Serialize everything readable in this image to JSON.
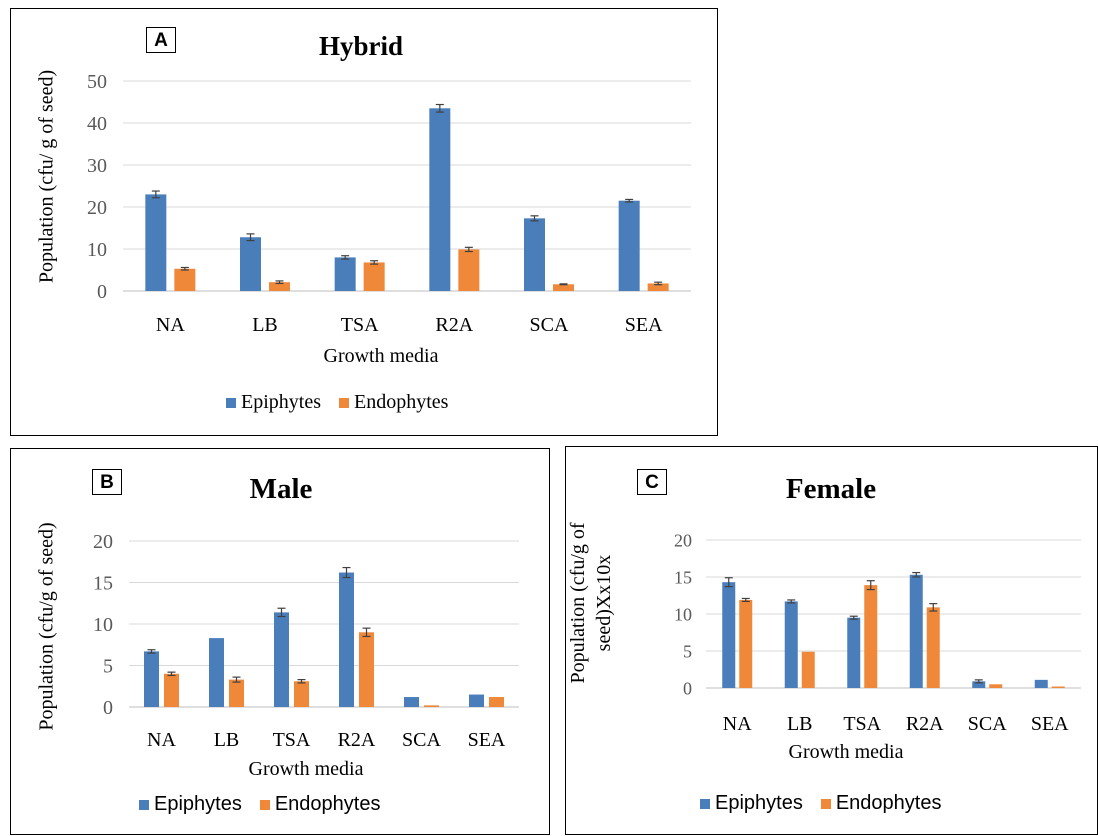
{
  "colors": {
    "epiphytes": "#4a7ebb",
    "endophytes": "#f0883a",
    "grid": "#d9d9d9",
    "error": "#404040"
  },
  "chart_data": [
    {
      "type": "bar",
      "panel_label": "A",
      "title": "Hybrid",
      "xlabel": "Growth media",
      "ylabel": "Population (cfu/ g of seed)",
      "categories": [
        "NA",
        "LB",
        "TSA",
        "R2A",
        "SCA",
        "SEA"
      ],
      "ylim": [
        0,
        50
      ],
      "yticks": [
        0,
        10,
        20,
        30,
        40,
        50
      ],
      "grid": true,
      "legend_position": "bottom",
      "series": [
        {
          "name": "Epiphytes",
          "values": [
            23,
            12.8,
            8,
            43.5,
            17.3,
            21.5
          ],
          "errors": [
            0.8,
            0.8,
            0.4,
            0.9,
            0.6,
            0.3
          ]
        },
        {
          "name": "Endophytes",
          "values": [
            5.3,
            2.1,
            6.8,
            9.9,
            1.6,
            1.8
          ],
          "errors": [
            0.3,
            0.3,
            0.4,
            0.5,
            0.1,
            0.3
          ]
        }
      ]
    },
    {
      "type": "bar",
      "panel_label": "B",
      "title": "Male",
      "xlabel": "Growth media",
      "ylabel": "Population (cfu/g of seed)",
      "categories": [
        "NA",
        "LB",
        "TSA",
        "R2A",
        "SCA",
        "SEA"
      ],
      "ylim": [
        0,
        20
      ],
      "yticks": [
        0,
        5,
        10,
        15,
        20
      ],
      "grid": true,
      "legend_position": "bottom",
      "series": [
        {
          "name": "Epiphytes",
          "values": [
            6.7,
            8.3,
            11.4,
            16.2,
            1.2,
            1.5
          ],
          "errors": [
            0.2,
            0.0,
            0.5,
            0.6,
            0.0,
            0.0
          ]
        },
        {
          "name": "Endophytes",
          "values": [
            4.0,
            3.3,
            3.1,
            9.0,
            0.2,
            1.2
          ],
          "errors": [
            0.2,
            0.3,
            0.2,
            0.5,
            0.0,
            0.0
          ]
        }
      ]
    },
    {
      "type": "bar",
      "panel_label": "C",
      "title": "Female",
      "xlabel": "Growth media",
      "ylabel": "Population (cfu/g of seed)Xx10x",
      "ylabel_lines": [
        "Population (cfu/g of",
        "seed)Xx10x"
      ],
      "categories": [
        "NA",
        "LB",
        "TSA",
        "R2A",
        "SCA",
        "SEA"
      ],
      "ylim": [
        0,
        20
      ],
      "yticks": [
        0,
        5,
        10,
        15,
        20
      ],
      "grid": true,
      "legend_position": "bottom",
      "series": [
        {
          "name": "Epiphytes",
          "values": [
            14.3,
            11.7,
            9.5,
            15.3,
            0.9,
            1.1
          ],
          "errors": [
            0.6,
            0.2,
            0.2,
            0.3,
            0.2,
            0.0
          ]
        },
        {
          "name": "Endophytes",
          "values": [
            11.9,
            4.9,
            13.9,
            10.9,
            0.5,
            0.2
          ],
          "errors": [
            0.2,
            0.0,
            0.6,
            0.5,
            0.0,
            0.0
          ]
        }
      ]
    }
  ]
}
